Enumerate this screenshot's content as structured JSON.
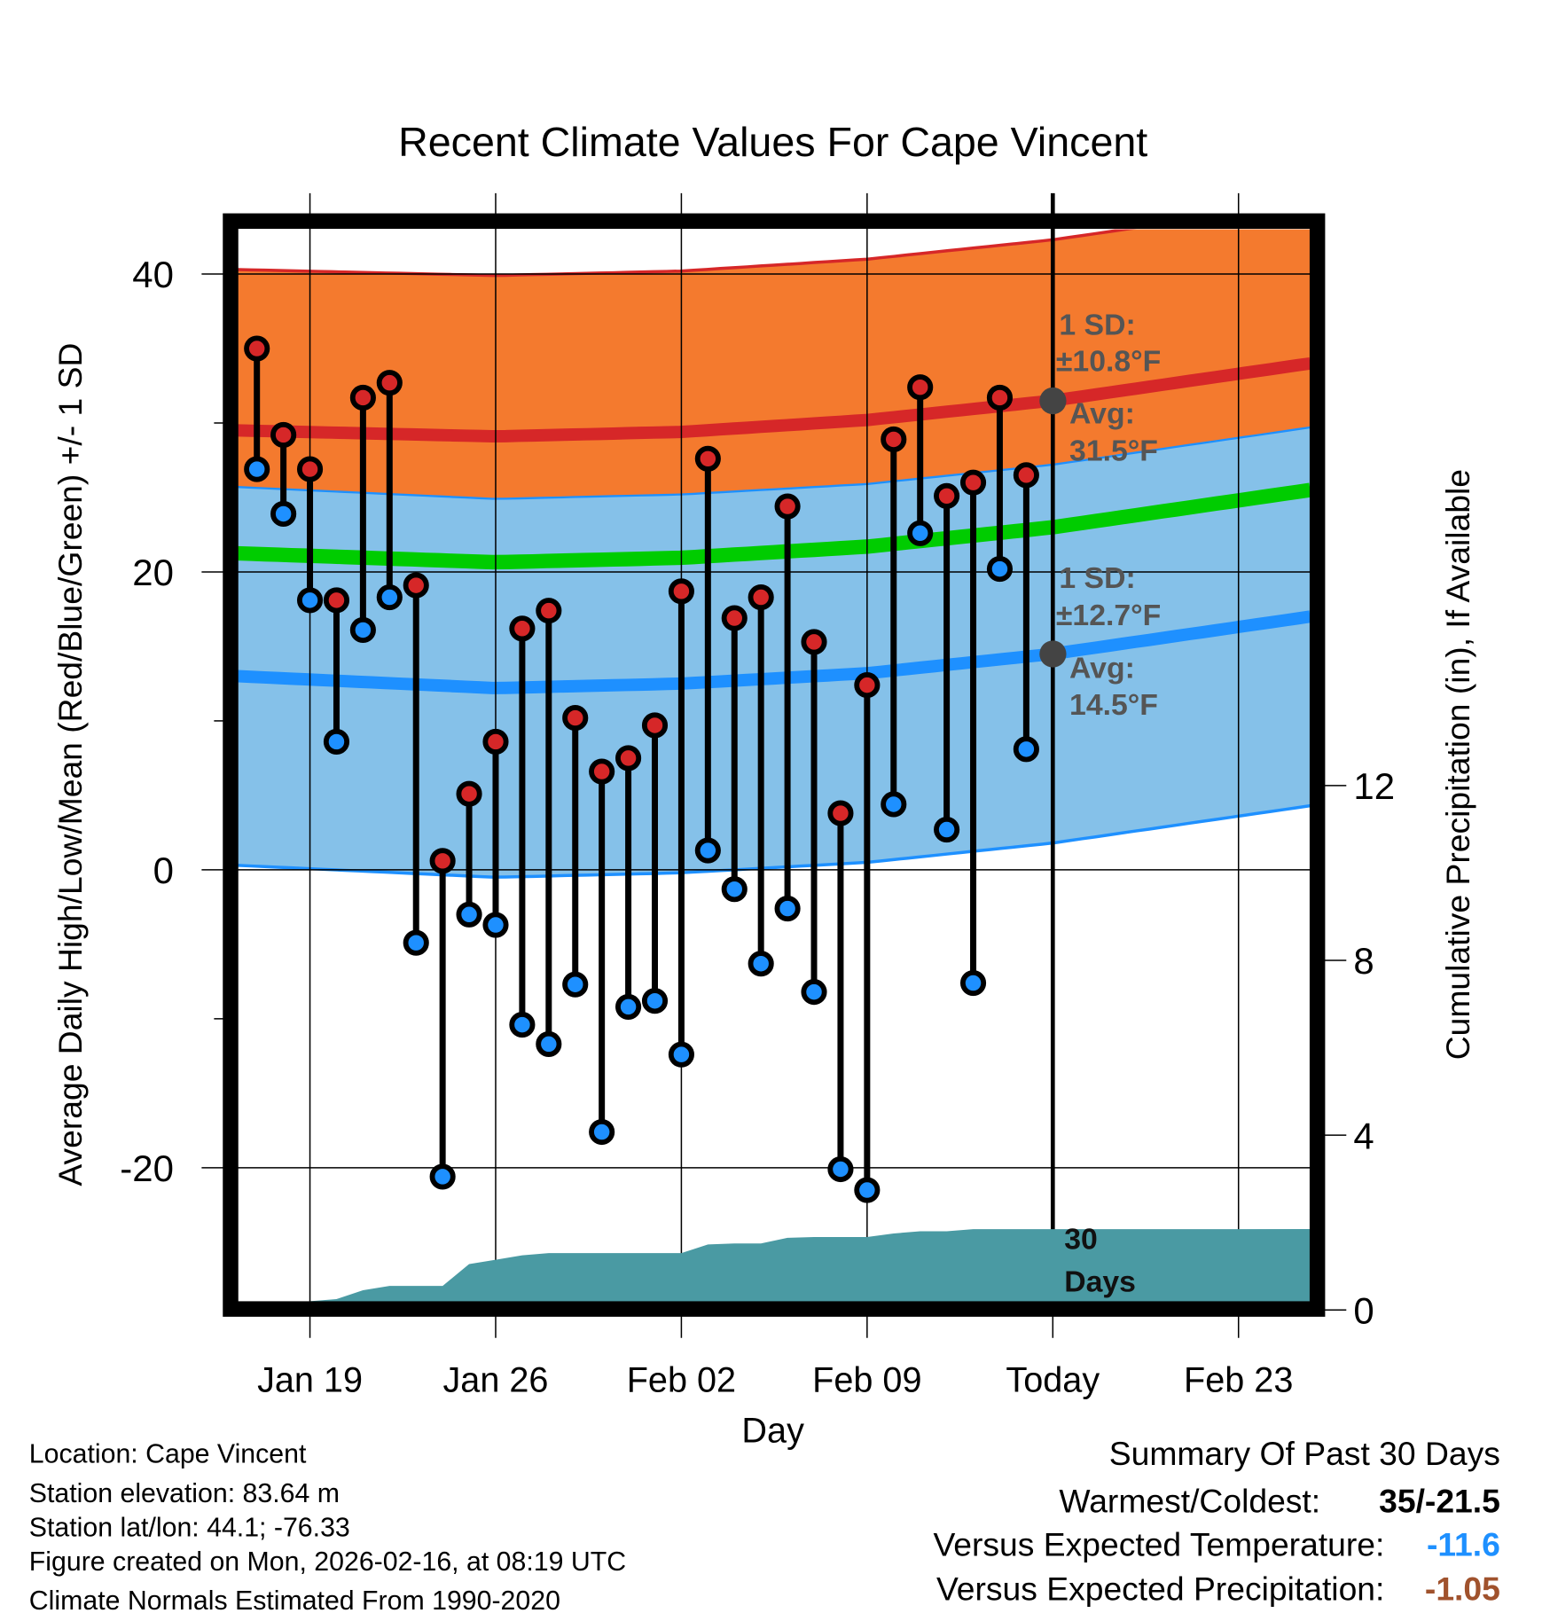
{
  "chart_data": {
    "type": "line",
    "title": "Recent Climate Values For Cape Vincent",
    "xlabel": "Day",
    "ylabel": "Average Daily High/Low/Mean (Red/Blue/Green) +/- 1 SD",
    "y2label": "Cumulative Precipitation (in), If Available",
    "ylim": [
      -29,
      43
    ],
    "yticks": [
      40,
      20,
      0,
      -20
    ],
    "y2ticks": [
      0,
      4,
      8,
      12
    ],
    "xticks": [
      {
        "day": 0,
        "label": "Jan 19"
      },
      {
        "day": 7,
        "label": "Jan 26"
      },
      {
        "day": 14,
        "label": "Feb 02"
      },
      {
        "day": 21,
        "label": "Feb 09"
      },
      {
        "day": 28,
        "label": "Today"
      },
      {
        "day": 35,
        "label": "Feb 23"
      }
    ],
    "day_origin": "Jan 19",
    "x_range_days": [
      -2.72,
      37.7
    ],
    "daily": {
      "dates": [
        "Jan 17",
        "Jan 18",
        "Jan 19",
        "Jan 20",
        "Jan 21",
        "Jan 22",
        "Jan 23",
        "Jan 24",
        "Jan 25",
        "Jan 26",
        "Jan 27",
        "Jan 28",
        "Jan 29",
        "Jan 30",
        "Jan 31",
        "Feb 01",
        "Feb 02",
        "Feb 03",
        "Feb 04",
        "Feb 05",
        "Feb 06",
        "Feb 07",
        "Feb 08",
        "Feb 09",
        "Feb 10",
        "Feb 11",
        "Feb 12",
        "Feb 13",
        "Feb 14",
        "Feb 15"
      ],
      "high": [
        35.0,
        29.2,
        26.9,
        18.1,
        31.7,
        32.7,
        19.1,
        0.6,
        5.1,
        8.6,
        16.2,
        17.4,
        10.2,
        6.6,
        7.5,
        9.7,
        18.7,
        27.6,
        16.9,
        18.3,
        24.4,
        15.3,
        3.8,
        12.4,
        28.9,
        32.4,
        25.1,
        26.0,
        31.7,
        26.5
      ],
      "low": [
        26.9,
        23.9,
        18.1,
        8.6,
        16.1,
        18.3,
        -4.9,
        -20.6,
        -3.0,
        -3.7,
        -10.4,
        -11.7,
        -7.7,
        -17.6,
        -9.2,
        -8.8,
        -12.4,
        1.3,
        -1.3,
        -6.3,
        -2.6,
        -8.2,
        -20.1,
        -21.5,
        4.4,
        22.6,
        2.7,
        -7.6,
        20.2,
        8.1
      ],
      "cumulative_precip": [
        0,
        0,
        0.2,
        0.25,
        0.45,
        0.55,
        0.55,
        0.55,
        1.05,
        1.15,
        1.25,
        1.3,
        1.3,
        1.3,
        1.3,
        1.3,
        1.3,
        1.5,
        1.52,
        1.52,
        1.65,
        1.67,
        1.67,
        1.67,
        1.75,
        1.8,
        1.8,
        1.85,
        1.85,
        1.85
      ]
    },
    "normals": {
      "days": [
        -2.72,
        7,
        14,
        21,
        28,
        37.7
      ],
      "avg_high": [
        29.5,
        29.1,
        29.4,
        30.2,
        31.5,
        34.0
      ],
      "avg_low": [
        13.0,
        12.2,
        12.5,
        13.2,
        14.5,
        17.0
      ],
      "high_sd": 10.8,
      "low_sd": 12.7
    },
    "annotations": {
      "high_sd_label": "1 SD:",
      "high_sd_value": "±10.8°F",
      "high_avg_label": "Avg:",
      "high_avg_value": "31.5°F",
      "low_sd_label": "1 SD:",
      "low_sd_value": "±12.7°F",
      "low_avg_label": "Avg:",
      "low_avg_value": "14.5°F",
      "precip_days_num": "30",
      "precip_days_word": "Days"
    },
    "colors": {
      "high_band": "#f47a2e",
      "mid_band": "#8b0e14",
      "low_band": "#85c1e9",
      "avg_high": "#d62728",
      "avg_low": "#1e90ff",
      "mean": "#00cc00",
      "precip": "#4a9aa3",
      "high_dot": "#d62728",
      "low_dot": "#1e90ff"
    }
  },
  "footer": {
    "location": "Location: Cape Vincent",
    "elevation": "Station elevation: 83.64 m",
    "latlon": "Station lat/lon: 44.1; -76.33",
    "created": "Figure created on Mon, 2026-02-16, at 08:19 UTC",
    "normals": "Climate Normals Estimated From 1990-2020"
  },
  "summary": {
    "title": "Summary Of Past 30 Days",
    "warmest_label": "Warmest/Coldest:",
    "warmest_value": "35/-21.5",
    "temp_label": "Versus Expected Temperature:",
    "temp_value": "-11.6",
    "temp_color": "#1e90ff",
    "precip_label": "Versus Expected Precipitation:",
    "precip_value": "-1.05",
    "precip_color": "#a0522d"
  }
}
